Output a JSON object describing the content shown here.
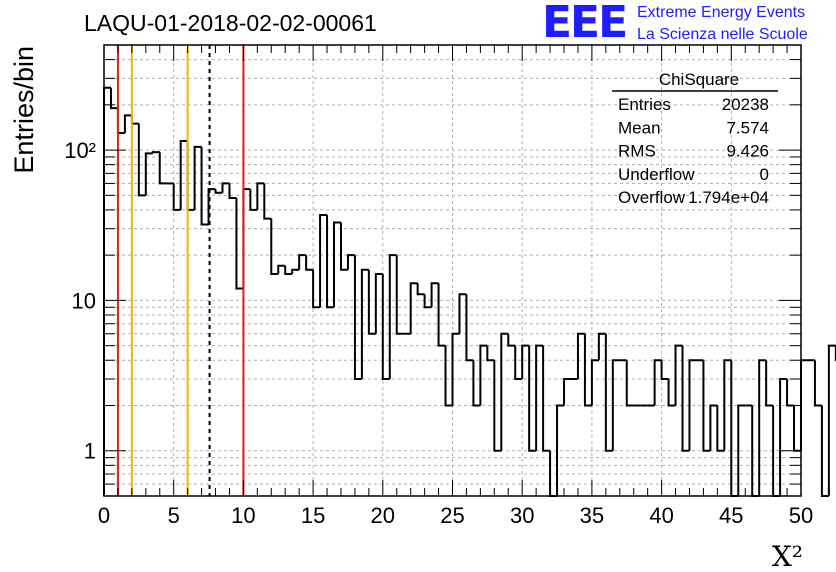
{
  "title": "LAQU-01-2018-02-02-00061",
  "logo": {
    "mark": "EEE",
    "line1": "Extreme Energy Events",
    "line2": "La Scienza nelle Scuole",
    "color": "#1d1dff"
  },
  "chart_data": {
    "type": "histogram",
    "title": "LAQU-01-2018-02-02-00061",
    "xlabel": "X²",
    "ylabel": "Entries/bin",
    "x_scale": "linear",
    "y_scale": "log",
    "xlim": [
      0,
      50
    ],
    "ylim": [
      0.5,
      500
    ],
    "x_ticks": [
      "0",
      "5",
      "10",
      "15",
      "20",
      "25",
      "30",
      "35",
      "40",
      "45",
      "50"
    ],
    "y_ticks": [
      {
        "value": 1,
        "label": "1"
      },
      {
        "value": 10,
        "label": "10"
      },
      {
        "value": 100,
        "label": "10²"
      }
    ],
    "grid": true,
    "bin_width": 0.5,
    "counts": [
      260,
      190,
      130,
      170,
      150,
      50,
      95,
      97,
      60,
      60,
      40,
      115,
      40,
      105,
      32,
      55,
      52,
      60,
      48,
      12,
      55,
      40,
      60,
      35,
      15,
      17,
      15,
      16,
      20,
      16,
      9,
      37,
      9,
      33,
      16,
      20,
      3,
      16,
      6,
      15,
      3,
      20,
      6,
      6,
      13,
      11,
      9,
      13,
      5,
      2,
      6,
      11,
      4,
      2,
      5,
      4,
      1,
      6,
      5,
      3,
      5,
      1,
      5,
      1,
      0,
      2,
      3,
      3,
      6,
      2,
      4,
      6,
      1,
      4,
      4,
      2,
      2,
      2,
      2,
      4,
      3,
      2,
      5,
      1,
      4,
      4,
      1,
      2,
      1,
      4,
      0,
      2,
      2,
      0,
      4,
      2,
      0,
      3,
      2,
      1,
      4,
      4,
      2,
      0,
      5,
      4,
      1,
      4,
      0,
      4,
      1,
      4,
      2,
      1,
      1,
      3,
      3,
      4,
      2,
      1,
      0,
      2,
      4,
      5,
      4,
      2,
      3,
      3,
      1,
      0,
      1,
      3,
      3,
      2,
      0,
      4,
      5,
      4,
      1,
      3,
      2,
      0,
      2,
      3,
      3,
      3,
      1
    ],
    "vertical_lines": [
      {
        "x": 1,
        "color": "#e0201c",
        "style": "solid"
      },
      {
        "x": 2,
        "color": "#f0b400",
        "style": "solid"
      },
      {
        "x": 6,
        "color": "#f0b400",
        "style": "solid"
      },
      {
        "x": 7.574,
        "color": "#000000",
        "style": "dashed"
      },
      {
        "x": 10,
        "color": "#e0201c",
        "style": "solid"
      }
    ],
    "stats": {
      "name": "ChiSquare",
      "rows": [
        {
          "label": "Entries",
          "value": "20238"
        },
        {
          "label": "Mean",
          "value": "7.574"
        },
        {
          "label": "RMS",
          "value": "9.426"
        },
        {
          "label": "Underflow",
          "value": "0"
        },
        {
          "label": "Overflow",
          "value": "1.794e+04"
        }
      ]
    }
  }
}
